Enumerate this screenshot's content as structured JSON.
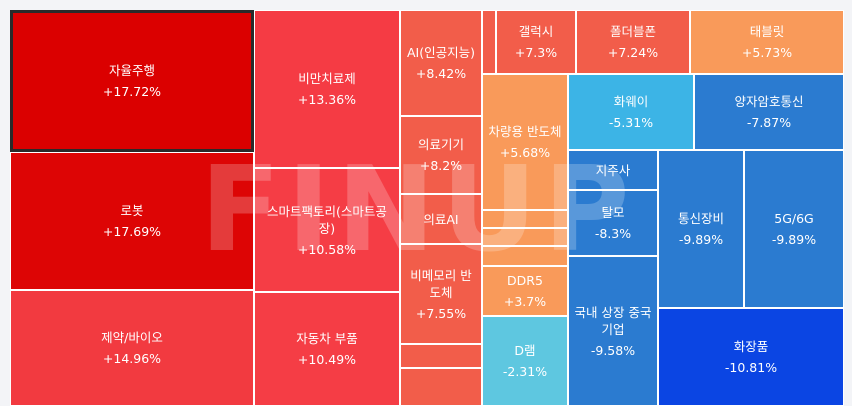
{
  "watermark": "FINUP",
  "tiles": [
    {
      "name": "자율주행",
      "value": "+17.72%",
      "color": "#db0000",
      "selected": true
    },
    {
      "name": "로봇",
      "value": "+17.69%",
      "color": "#dd0505"
    },
    {
      "name": "제약/바이오",
      "value": "+14.96%",
      "color": "#f23a40"
    },
    {
      "name": "비만치료제",
      "value": "+13.36%",
      "color": "#f53b44"
    },
    {
      "name": "스마트팩토리(스마트공장)",
      "value": "+10.58%",
      "color": "#f53d45"
    },
    {
      "name": "자동차 부품",
      "value": "+10.49%",
      "color": "#f53d45"
    },
    {
      "name": "AI(인공지능)",
      "value": "+8.42%",
      "color": "#f25d4a"
    },
    {
      "name": "의료기기",
      "value": "+8.2%",
      "color": "#f25d4a"
    },
    {
      "name": "의료AI",
      "value": "",
      "color": "#f25d4a"
    },
    {
      "name": "비메모리 반도체",
      "value": "+7.55%",
      "color": "#f25d4a"
    },
    {
      "name": "",
      "value": "",
      "color": "#f25d4a"
    },
    {
      "name": "",
      "value": "",
      "color": "#f25d4a"
    },
    {
      "name": "",
      "value": "",
      "color": "#f25d4a"
    },
    {
      "name": "갤럭시",
      "value": "+7.3%",
      "color": "#f25d4a"
    },
    {
      "name": "폴더블폰",
      "value": "+7.24%",
      "color": "#f25d4a"
    },
    {
      "name": "태블릿",
      "value": "+5.73%",
      "color": "#f99a5a"
    },
    {
      "name": "차량용 반도체",
      "value": "+5.68%",
      "color": "#f99a5a"
    },
    {
      "name": "",
      "value": "",
      "color": "#f99a5a"
    },
    {
      "name": "",
      "value": "",
      "color": "#f99a5a"
    },
    {
      "name": "",
      "value": "",
      "color": "#f99a5a"
    },
    {
      "name": "DDR5",
      "value": "+3.7%",
      "color": "#f99a5a"
    },
    {
      "name": "D램",
      "value": "-2.31%",
      "color": "#5ec7e0"
    },
    {
      "name": "화웨이",
      "value": "-5.31%",
      "color": "#3cb4e6"
    },
    {
      "name": "양자암호통신",
      "value": "-7.87%",
      "color": "#2b7bd0"
    },
    {
      "name": "지주사",
      "value": "",
      "color": "#2b7bd0"
    },
    {
      "name": "탈모",
      "value": "-8.3%",
      "color": "#2b7bd0"
    },
    {
      "name": "국내 상장 중국기업",
      "value": "-9.58%",
      "color": "#2b7bd0"
    },
    {
      "name": "통신장비",
      "value": "-9.89%",
      "color": "#2b7bd0"
    },
    {
      "name": "5G/6G",
      "value": "-9.89%",
      "color": "#2b7bd0"
    },
    {
      "name": "화장품",
      "value": "-10.81%",
      "color": "#0b45e3"
    }
  ]
}
